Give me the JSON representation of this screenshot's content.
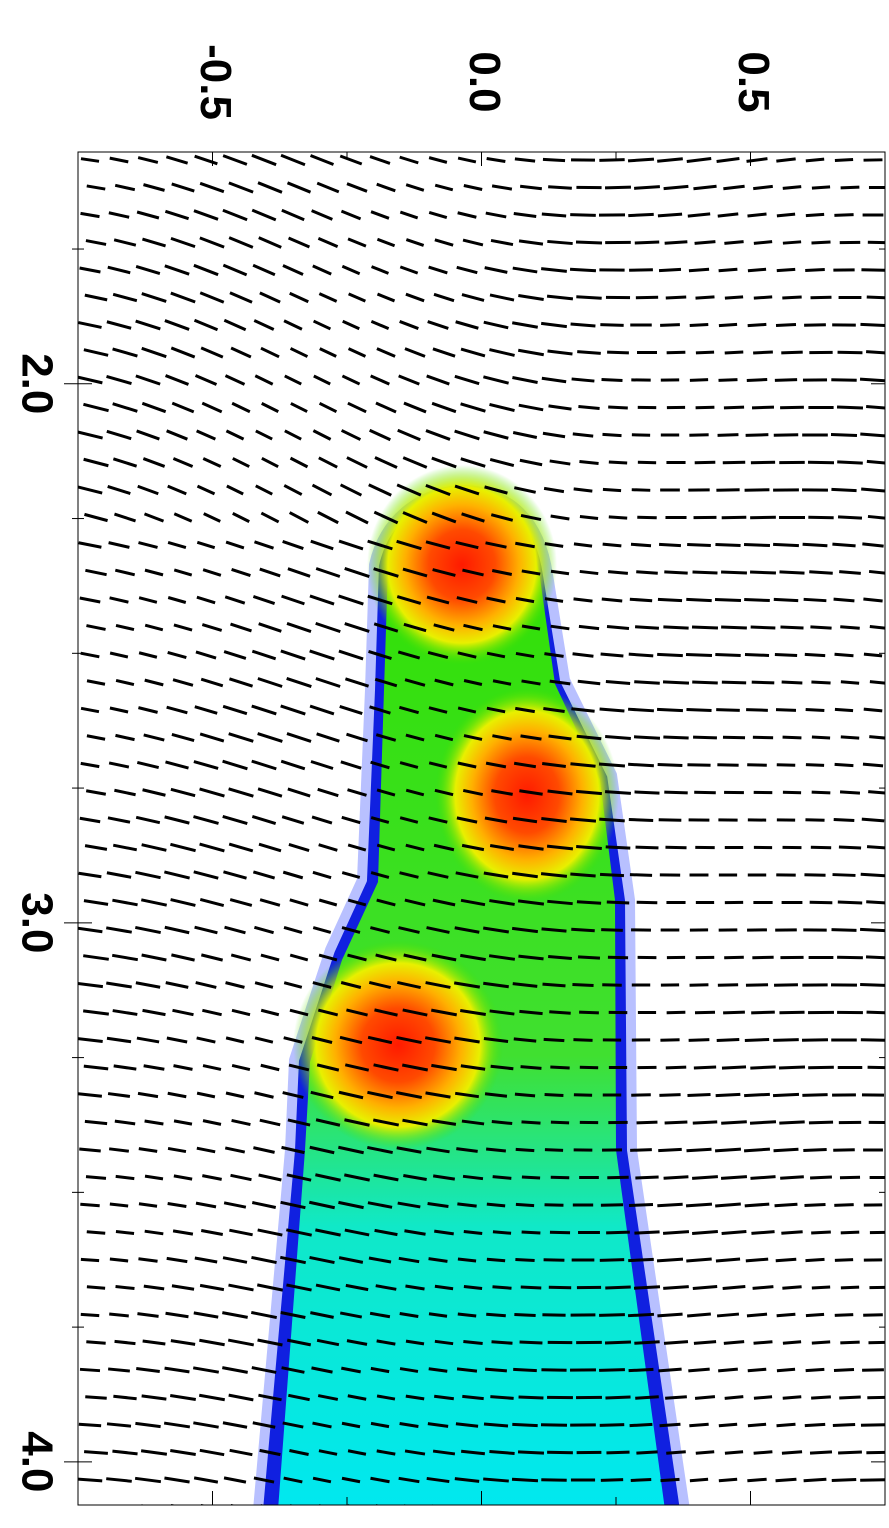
{
  "chart_data": {
    "type": "vector-map",
    "xlim": [
      -0.75,
      0.75
    ],
    "xticks": [
      -0.5,
      {
        "value": 0,
        "label": "0.0"
      },
      0.5
    ],
    "xminorticks": [
      -0.25,
      0.25
    ],
    "ylim": [
      1.57,
      4.08
    ],
    "yticks": [
      {
        "value": 2,
        "label": "2.0"
      },
      {
        "value": 3,
        "label": "3.0"
      },
      {
        "value": 4,
        "label": "4.0"
      }
    ],
    "yminorticks": [
      1.75,
      2.25,
      2.5,
      2.75,
      3.25,
      3.5,
      3.75
    ]
  }
}
